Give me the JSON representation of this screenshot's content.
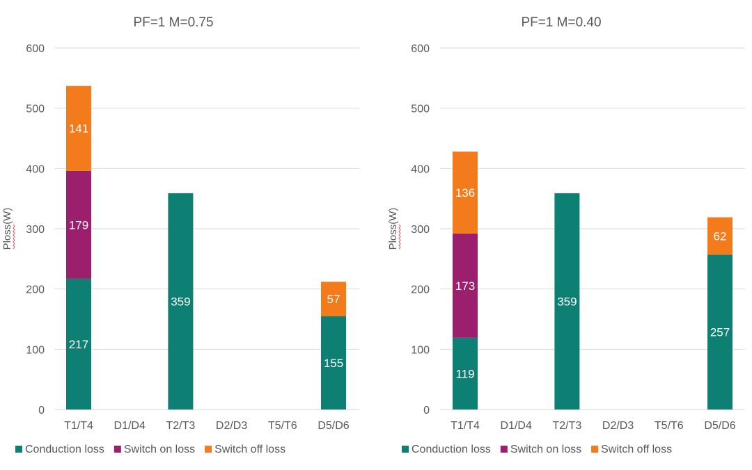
{
  "colors": {
    "Conduction loss": "#0e8073",
    "Switch on loss": "#9b1f6c",
    "Switch off loss": "#f47b1c",
    "grid": "#d9d9d9",
    "text": "#595959",
    "squiggle": "#e05252"
  },
  "chart_data": [
    {
      "type": "bar",
      "stacked": true,
      "title": "PF=1  M=0.75",
      "ylabel": "Ploss(W)",
      "xlabel": "",
      "ylim": [
        0,
        600
      ],
      "yticks": [
        "0",
        "100",
        "200",
        "300",
        "400",
        "500",
        "600"
      ],
      "grid": true,
      "legend_position": "bottom",
      "categories": [
        "T1/T4",
        "D1/D4",
        "T2/T3",
        "D2/D3",
        "T5/T6",
        "D5/D6"
      ],
      "series": [
        {
          "name": "Conduction loss",
          "values": [
            217,
            null,
            359,
            null,
            null,
            155
          ],
          "labels": [
            "217",
            "",
            "359",
            "",
            "",
            "155"
          ]
        },
        {
          "name": "Switch on loss",
          "values": [
            179,
            null,
            null,
            null,
            null,
            null
          ],
          "labels": [
            "179",
            "",
            "",
            "",
            "",
            ""
          ]
        },
        {
          "name": "Switch off loss",
          "values": [
            141,
            null,
            null,
            null,
            null,
            57
          ],
          "labels": [
            "141",
            "",
            "",
            "",
            "",
            "57"
          ]
        }
      ]
    },
    {
      "type": "bar",
      "stacked": true,
      "title": "PF=1  M=0.40",
      "ylabel": "Ploss(W)",
      "xlabel": "",
      "ylim": [
        0,
        600
      ],
      "yticks": [
        "0",
        "100",
        "200",
        "300",
        "400",
        "500",
        "600"
      ],
      "grid": true,
      "legend_position": "bottom",
      "categories": [
        "T1/T4",
        "D1/D4",
        "T2/T3",
        "D2/D3",
        "T5/T6",
        "D5/D6"
      ],
      "series": [
        {
          "name": "Conduction loss",
          "values": [
            119,
            null,
            359,
            null,
            null,
            257
          ],
          "labels": [
            "119",
            "",
            "359",
            "",
            "",
            "257"
          ]
        },
        {
          "name": "Switch on loss",
          "values": [
            173,
            null,
            null,
            null,
            null,
            null
          ],
          "labels": [
            "173",
            "",
            "",
            "",
            "",
            ""
          ]
        },
        {
          "name": "Switch off loss",
          "values": [
            136,
            null,
            null,
            null,
            null,
            62
          ],
          "labels": [
            "136",
            "",
            "",
            "",
            "",
            "62"
          ]
        }
      ]
    }
  ]
}
